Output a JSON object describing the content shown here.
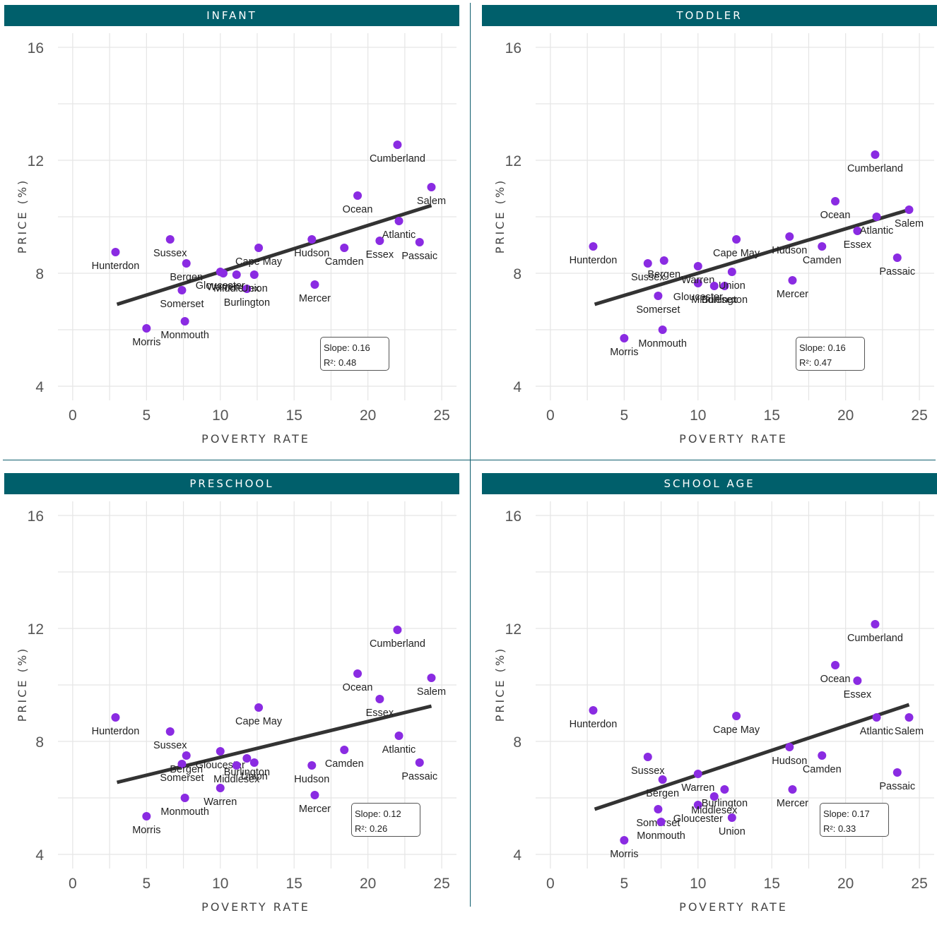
{
  "colors": {
    "header_bg": "#005f6b",
    "point": "#8a2be2",
    "line": "#333333",
    "grid": "#e5e5e5"
  },
  "chart_data": [
    {
      "type": "scatter",
      "title": "INFANT",
      "xlabel": "POVERTY RATE",
      "ylabel": "PRICE (%)",
      "xlim": [
        -1,
        26
      ],
      "ylim": [
        3.5,
        16.5
      ],
      "xticks": [
        0,
        5,
        10,
        15,
        20,
        25
      ],
      "yticks": [
        4,
        8,
        12,
        16
      ],
      "slope_label": "Slope: 0.16",
      "r2_label": "R²: 0.48",
      "fit": [
        [
          3.0,
          6.9
        ],
        [
          24.3,
          10.4
        ]
      ],
      "points": [
        {
          "name": "Hunterdon",
          "x": 2.9,
          "y": 8.75
        },
        {
          "name": "Morris",
          "x": 5.0,
          "y": 6.05
        },
        {
          "name": "Sussex",
          "x": 6.6,
          "y": 9.2
        },
        {
          "name": "Somerset",
          "x": 7.4,
          "y": 7.4
        },
        {
          "name": "Monmouth",
          "x": 7.6,
          "y": 6.3
        },
        {
          "name": "Bergen",
          "x": 7.7,
          "y": 8.35
        },
        {
          "name": "Gloucester",
          "x": 10.0,
          "y": 8.05
        },
        {
          "name": "Warren",
          "x": 10.2,
          "y": 8.0
        },
        {
          "name": "Middlesex",
          "x": 11.1,
          "y": 7.95
        },
        {
          "name": "Burlington",
          "x": 11.8,
          "y": 7.45
        },
        {
          "name": "Union",
          "x": 12.3,
          "y": 7.95
        },
        {
          "name": "Cape May",
          "x": 12.6,
          "y": 8.9
        },
        {
          "name": "Hudson",
          "x": 16.2,
          "y": 9.2
        },
        {
          "name": "Mercer",
          "x": 16.4,
          "y": 7.6
        },
        {
          "name": "Camden",
          "x": 18.4,
          "y": 8.9
        },
        {
          "name": "Ocean",
          "x": 19.3,
          "y": 10.75
        },
        {
          "name": "Essex",
          "x": 20.8,
          "y": 9.15
        },
        {
          "name": "Cumberland",
          "x": 22.0,
          "y": 12.55
        },
        {
          "name": "Atlantic",
          "x": 22.1,
          "y": 9.85
        },
        {
          "name": "Passaic",
          "x": 23.5,
          "y": 9.1
        },
        {
          "name": "Salem",
          "x": 24.3,
          "y": 11.05
        }
      ]
    },
    {
      "type": "scatter",
      "title": "TODDLER",
      "xlabel": "POVERTY RATE",
      "ylabel": "PRICE (%)",
      "xlim": [
        -1,
        26
      ],
      "ylim": [
        3.5,
        16.5
      ],
      "xticks": [
        0,
        5,
        10,
        15,
        20,
        25
      ],
      "yticks": [
        4,
        8,
        12,
        16
      ],
      "slope_label": "Slope: 0.16",
      "r2_label": "R²: 0.47",
      "fit": [
        [
          3.0,
          6.9
        ],
        [
          24.3,
          10.25
        ]
      ],
      "points": [
        {
          "name": "Hunterdon",
          "x": 2.9,
          "y": 8.95
        },
        {
          "name": "Morris",
          "x": 5.0,
          "y": 5.7
        },
        {
          "name": "Sussex",
          "x": 6.6,
          "y": 8.35
        },
        {
          "name": "Somerset",
          "x": 7.3,
          "y": 7.2
        },
        {
          "name": "Monmouth",
          "x": 7.6,
          "y": 6.0
        },
        {
          "name": "Bergen",
          "x": 7.7,
          "y": 8.45
        },
        {
          "name": "Gloucester",
          "x": 10.0,
          "y": 7.65
        },
        {
          "name": "Warren",
          "x": 10.0,
          "y": 8.25
        },
        {
          "name": "Middlesex",
          "x": 11.1,
          "y": 7.55
        },
        {
          "name": "Burlington",
          "x": 11.8,
          "y": 7.55
        },
        {
          "name": "Union",
          "x": 12.3,
          "y": 8.05
        },
        {
          "name": "Cape May",
          "x": 12.6,
          "y": 9.2
        },
        {
          "name": "Hudson",
          "x": 16.2,
          "y": 9.3
        },
        {
          "name": "Mercer",
          "x": 16.4,
          "y": 7.75
        },
        {
          "name": "Camden",
          "x": 18.4,
          "y": 8.95
        },
        {
          "name": "Ocean",
          "x": 19.3,
          "y": 10.55
        },
        {
          "name": "Essex",
          "x": 20.8,
          "y": 9.5
        },
        {
          "name": "Cumberland",
          "x": 22.0,
          "y": 12.2
        },
        {
          "name": "Atlantic",
          "x": 22.1,
          "y": 10.0
        },
        {
          "name": "Passaic",
          "x": 23.5,
          "y": 8.55
        },
        {
          "name": "Salem",
          "x": 24.3,
          "y": 10.25
        }
      ]
    },
    {
      "type": "scatter",
      "title": "PRESCHOOL",
      "xlabel": "POVERTY RATE",
      "ylabel": "PRICE (%)",
      "xlim": [
        -1,
        26
      ],
      "ylim": [
        3.5,
        16.5
      ],
      "xticks": [
        0,
        5,
        10,
        15,
        20,
        25
      ],
      "yticks": [
        4,
        8,
        12,
        16
      ],
      "slope_label": "Slope: 0.12",
      "r2_label": "R²: 0.26",
      "fit": [
        [
          3.0,
          6.55
        ],
        [
          24.3,
          9.25
        ]
      ],
      "points": [
        {
          "name": "Hunterdon",
          "x": 2.9,
          "y": 8.85
        },
        {
          "name": "Morris",
          "x": 5.0,
          "y": 5.35
        },
        {
          "name": "Sussex",
          "x": 6.6,
          "y": 8.35
        },
        {
          "name": "Somerset",
          "x": 7.4,
          "y": 7.2
        },
        {
          "name": "Monmouth",
          "x": 7.6,
          "y": 6.0
        },
        {
          "name": "Bergen",
          "x": 7.7,
          "y": 7.5
        },
        {
          "name": "Gloucester",
          "x": 10.0,
          "y": 7.65
        },
        {
          "name": "Warren",
          "x": 10.0,
          "y": 6.35
        },
        {
          "name": "Middlesex",
          "x": 11.1,
          "y": 7.15
        },
        {
          "name": "Burlington",
          "x": 11.8,
          "y": 7.4
        },
        {
          "name": "Union",
          "x": 12.3,
          "y": 7.25
        },
        {
          "name": "Cape May",
          "x": 12.6,
          "y": 9.2
        },
        {
          "name": "Hudson",
          "x": 16.2,
          "y": 7.15
        },
        {
          "name": "Mercer",
          "x": 16.4,
          "y": 6.1
        },
        {
          "name": "Camden",
          "x": 18.4,
          "y": 7.7
        },
        {
          "name": "Ocean",
          "x": 19.3,
          "y": 10.4
        },
        {
          "name": "Essex",
          "x": 20.8,
          "y": 9.5
        },
        {
          "name": "Cumberland",
          "x": 22.0,
          "y": 11.95
        },
        {
          "name": "Atlantic",
          "x": 22.1,
          "y": 8.2
        },
        {
          "name": "Passaic",
          "x": 23.5,
          "y": 7.25
        },
        {
          "name": "Salem",
          "x": 24.3,
          "y": 10.25
        }
      ]
    },
    {
      "type": "scatter",
      "title": "SCHOOL AGE",
      "xlabel": "POVERTY RATE",
      "ylabel": "PRICE (%)",
      "xlim": [
        -1,
        26
      ],
      "ylim": [
        3.5,
        16.5
      ],
      "xticks": [
        0,
        5,
        10,
        15,
        20,
        25
      ],
      "yticks": [
        4,
        8,
        12,
        16
      ],
      "slope_label": "Slope: 0.17",
      "r2_label": "R²: 0.33",
      "fit": [
        [
          3.0,
          5.6
        ],
        [
          24.3,
          9.3
        ]
      ],
      "points": [
        {
          "name": "Hunterdon",
          "x": 2.9,
          "y": 9.1
        },
        {
          "name": "Morris",
          "x": 5.0,
          "y": 4.5
        },
        {
          "name": "Sussex",
          "x": 6.6,
          "y": 7.45
        },
        {
          "name": "Somerset",
          "x": 7.3,
          "y": 5.6
        },
        {
          "name": "Monmouth",
          "x": 7.5,
          "y": 5.15
        },
        {
          "name": "Bergen",
          "x": 7.6,
          "y": 6.65
        },
        {
          "name": "Gloucester",
          "x": 10.0,
          "y": 5.75
        },
        {
          "name": "Warren",
          "x": 10.0,
          "y": 6.85
        },
        {
          "name": "Middlesex",
          "x": 11.1,
          "y": 6.05
        },
        {
          "name": "Burlington",
          "x": 11.8,
          "y": 6.3
        },
        {
          "name": "Union",
          "x": 12.3,
          "y": 5.3
        },
        {
          "name": "Cape May",
          "x": 12.6,
          "y": 8.9
        },
        {
          "name": "Hudson",
          "x": 16.2,
          "y": 7.8
        },
        {
          "name": "Mercer",
          "x": 16.4,
          "y": 6.3
        },
        {
          "name": "Camden",
          "x": 18.4,
          "y": 7.5
        },
        {
          "name": "Ocean",
          "x": 19.3,
          "y": 10.7
        },
        {
          "name": "Essex",
          "x": 20.8,
          "y": 10.15
        },
        {
          "name": "Cumberland",
          "x": 22.0,
          "y": 12.15
        },
        {
          "name": "Atlantic",
          "x": 22.1,
          "y": 8.85
        },
        {
          "name": "Passaic",
          "x": 23.5,
          "y": 6.9
        },
        {
          "name": "Salem",
          "x": 24.3,
          "y": 8.85
        }
      ]
    }
  ]
}
